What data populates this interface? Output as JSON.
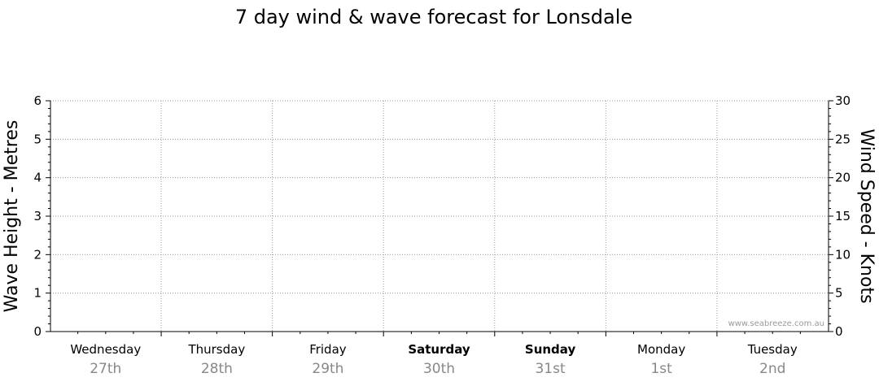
{
  "chart_data": {
    "type": "line",
    "title": "7 day wind & wave forecast for Lonsdale",
    "y_left": {
      "label": "Wave Height - Metres",
      "range": [
        0,
        6
      ],
      "ticks": [
        0,
        1,
        2,
        3,
        4,
        5,
        6
      ]
    },
    "y_right": {
      "label": "Wind Speed - Knots",
      "range": [
        0,
        30
      ],
      "ticks": [
        0,
        5,
        10,
        15,
        20,
        25,
        30
      ]
    },
    "x_days": [
      {
        "name": "Wednesday",
        "date": "27th",
        "bold": false
      },
      {
        "name": "Thursday",
        "date": "28th",
        "bold": false
      },
      {
        "name": "Friday",
        "date": "29th",
        "bold": false
      },
      {
        "name": "Saturday",
        "date": "30th",
        "bold": true
      },
      {
        "name": "Sunday",
        "date": "31st",
        "bold": true
      },
      {
        "name": "Monday",
        "date": "1st",
        "bold": false
      },
      {
        "name": "Tuesday",
        "date": "2nd",
        "bold": false
      }
    ],
    "grid": true,
    "series": []
  },
  "watermark": "www.seabreeze.com.au"
}
